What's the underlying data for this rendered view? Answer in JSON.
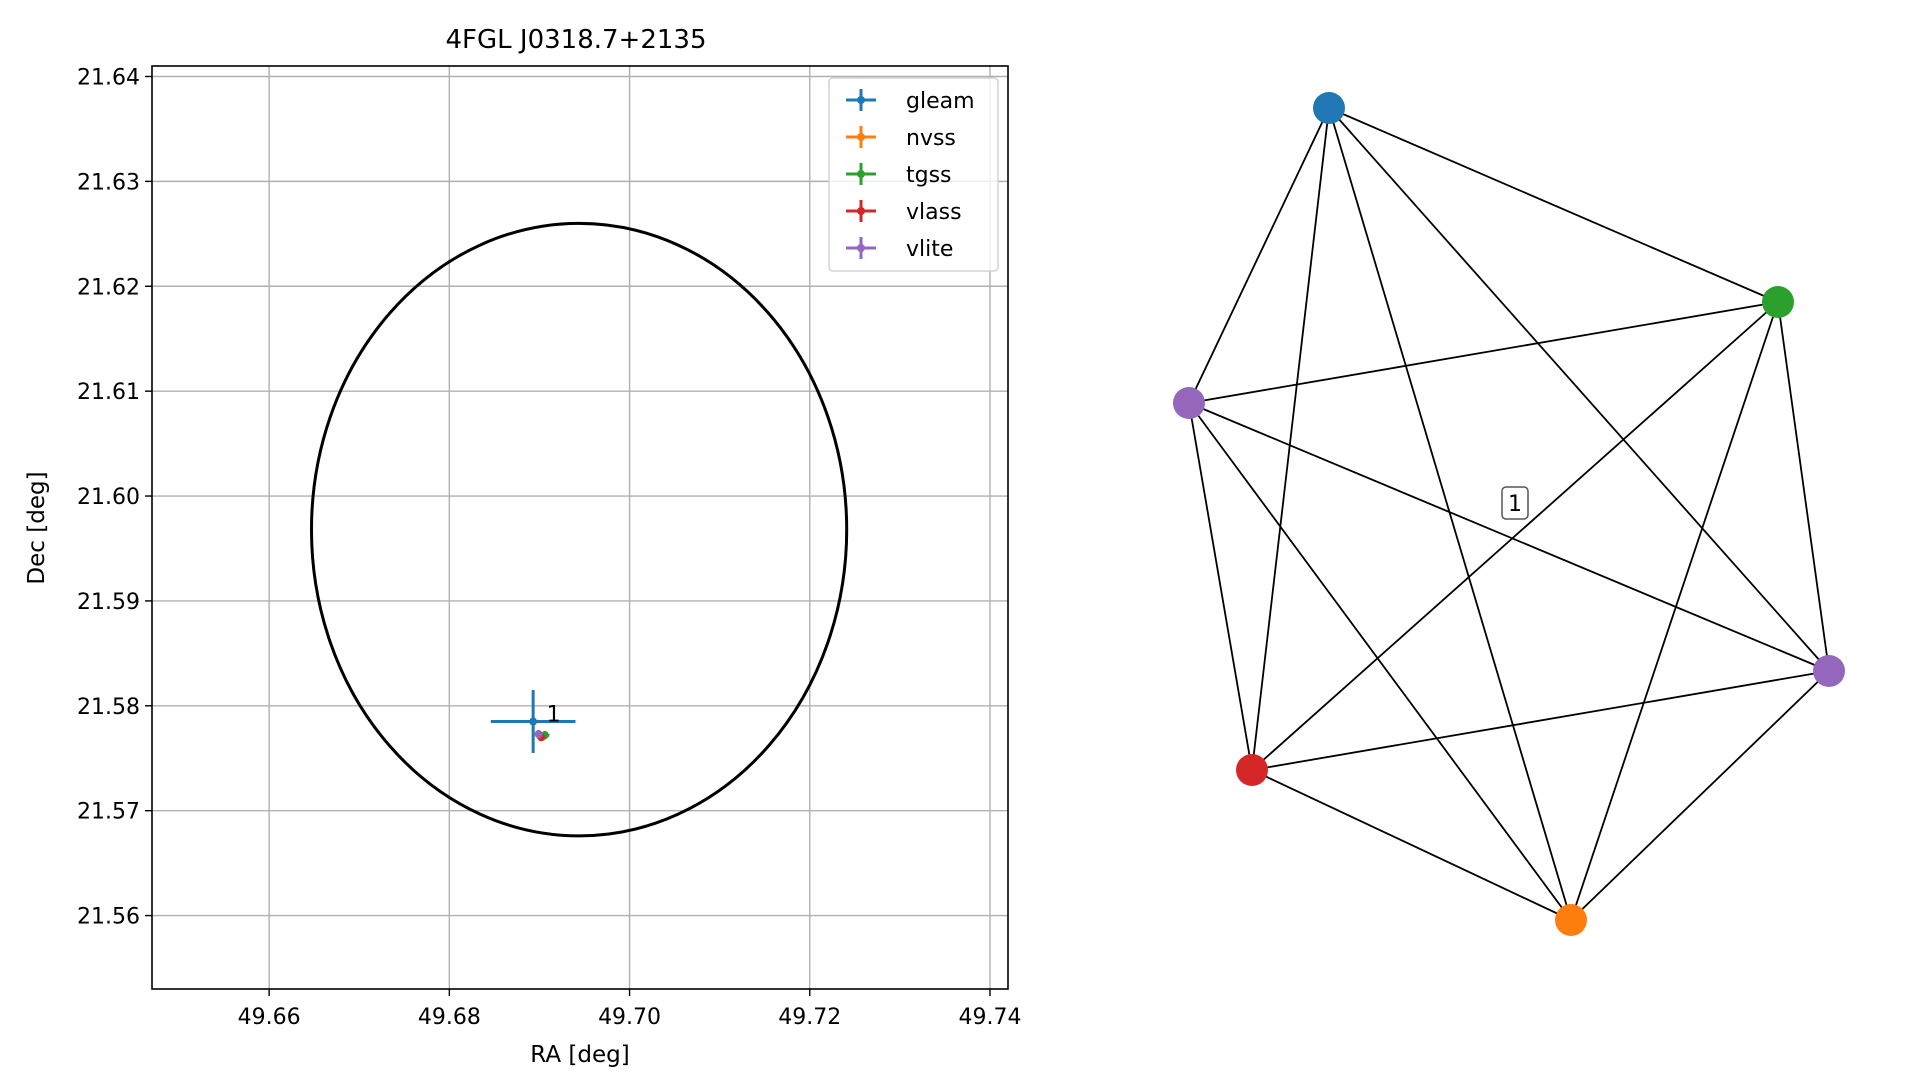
{
  "chart_data": [
    {
      "type": "scatter",
      "title": "4FGL J0318.7+2135",
      "xlabel": "RA [deg]",
      "ylabel": "Dec [deg]",
      "xlim": [
        49.647,
        49.742
      ],
      "ylim": [
        21.553,
        21.641
      ],
      "xticks": [
        "49.66",
        "49.68",
        "49.70",
        "49.72",
        "49.74"
      ],
      "yticks": [
        "21.56",
        "21.57",
        "21.58",
        "21.59",
        "21.60",
        "21.61",
        "21.62",
        "21.63",
        "21.64"
      ],
      "grid": true,
      "legend_position": "top-right",
      "ellipse": {
        "center": [
          49.6944,
          21.5968
        ],
        "ra_semi_axis": 0.0297,
        "dec_semi_axis": 0.0292,
        "color": "#000000"
      },
      "series": [
        {
          "name": "gleam",
          "color": "#1f77b4",
          "x": 49.6893,
          "y": 21.5785,
          "xerr": 0.0047,
          "yerr": 0.003
        },
        {
          "name": "nvss",
          "color": "#ff7f0e",
          "x": 49.6904,
          "y": 21.5771,
          "xerr": 0.0004,
          "yerr": 0.0004
        },
        {
          "name": "tgss",
          "color": "#2ca02c",
          "x": 49.6906,
          "y": 21.5772,
          "xerr": 0.0005,
          "yerr": 0.0004
        },
        {
          "name": "vlass",
          "color": "#d62728",
          "x": 49.6902,
          "y": 21.577,
          "xerr": 0.0001,
          "yerr": 0.0001
        },
        {
          "name": "vlite",
          "color": "#9467bd",
          "x": 49.6899,
          "y": 21.5773,
          "xerr": 0.0004,
          "yerr": 0.0004
        }
      ],
      "annotations": [
        {
          "text": "1",
          "x": 49.6908,
          "y": 21.5787
        }
      ]
    },
    {
      "type": "network",
      "nodes": [
        {
          "id": "gleam",
          "color": "#1f77b4"
        },
        {
          "id": "tgss",
          "color": "#2ca02c"
        },
        {
          "id": "vlite-a",
          "color": "#9467bd"
        },
        {
          "id": "vlite-b",
          "color": "#9467bd"
        },
        {
          "id": "vlass",
          "color": "#d62728"
        },
        {
          "id": "nvss",
          "color": "#ff7f0e"
        }
      ],
      "edges": "complete graph",
      "cluster_label": "1"
    }
  ]
}
